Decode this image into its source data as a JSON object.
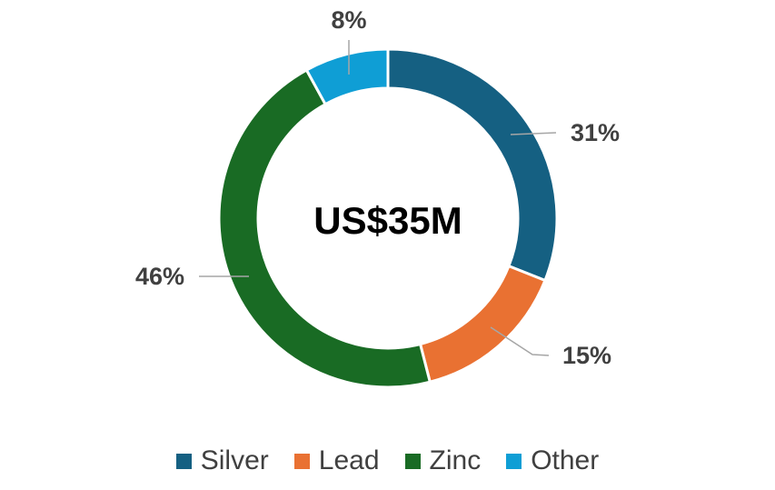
{
  "chart_data": {
    "type": "pie",
    "donut": true,
    "center_label": "US$35M",
    "slices": [
      {
        "name": "Silver",
        "value": 31,
        "label": "31%",
        "color": "#156082"
      },
      {
        "name": "Lead",
        "value": 15,
        "label": "15%",
        "color": "#E97132"
      },
      {
        "name": "Zinc",
        "value": 46,
        "label": "46%",
        "color": "#196B24"
      },
      {
        "name": "Other",
        "value": 8,
        "label": "8%",
        "color": "#0F9ED5"
      }
    ],
    "legend_position": "bottom"
  }
}
